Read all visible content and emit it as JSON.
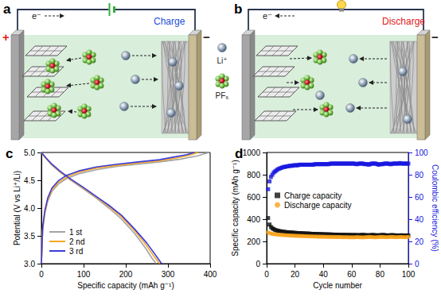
{
  "diagrams": [
    {
      "label": "a",
      "mode": "Charge",
      "electron": "e⁻",
      "positive": "+",
      "negative": "−"
    },
    {
      "label": "b",
      "mode": "Discharge",
      "electron": "e⁻",
      "negative": "−"
    }
  ],
  "species": [
    {
      "label": "Li⁺"
    },
    {
      "label": "PF₆"
    }
  ],
  "chart_data": [
    {
      "type": "line",
      "title": "c",
      "xlabel": "Specific capacity (mAh g⁻¹)",
      "ylabel": "Potential (V vs Li⁺/Li)",
      "xlim": [
        0,
        400
      ],
      "xticks": [
        0,
        100,
        200,
        300,
        400
      ],
      "ylim": [
        3.0,
        5.0
      ],
      "yticks": [
        {
          "value": 3.0,
          "label": "3.0"
        },
        {
          "value": 3.5,
          "label": "3.5"
        },
        {
          "value": 4.0,
          "label": "4.0"
        },
        {
          "value": 4.5,
          "label": "4.5"
        },
        {
          "value": 5.0,
          "label": "5.0"
        }
      ],
      "grid": false,
      "legend": "lower left",
      "series": [
        {
          "name": "1 st",
          "color": "#a3a3a3",
          "x": [
            0,
            3,
            8,
            15,
            25,
            40,
            60,
            90,
            130,
            180,
            230,
            280,
            330,
            370,
            398,
            null,
            0,
            10,
            25,
            45,
            70,
            100,
            130,
            160,
            190,
            220,
            245,
            262,
            272
          ],
          "values": [
            3.0,
            3.6,
            3.9,
            4.12,
            4.3,
            4.43,
            4.53,
            4.62,
            4.69,
            4.75,
            4.79,
            4.83,
            4.88,
            4.94,
            5.0,
            null,
            5.0,
            4.9,
            4.77,
            4.64,
            4.5,
            4.34,
            4.18,
            4.0,
            3.8,
            3.55,
            3.3,
            3.1,
            3.0
          ]
        },
        {
          "name": "2 nd",
          "color": "#f5a623",
          "x": [
            0,
            3,
            8,
            15,
            25,
            40,
            60,
            90,
            130,
            180,
            230,
            280,
            320,
            350,
            372,
            null,
            0,
            10,
            25,
            45,
            70,
            100,
            130,
            160,
            190,
            220,
            248,
            268,
            280
          ],
          "values": [
            3.0,
            3.62,
            3.92,
            4.15,
            4.33,
            4.46,
            4.56,
            4.65,
            4.72,
            4.77,
            4.81,
            4.85,
            4.9,
            4.95,
            5.0,
            null,
            5.0,
            4.9,
            4.78,
            4.65,
            4.51,
            4.36,
            4.2,
            4.03,
            3.84,
            3.6,
            3.34,
            3.12,
            3.0
          ]
        },
        {
          "name": "3 rd",
          "color": "#3b3bd9",
          "x": [
            0,
            3,
            8,
            15,
            25,
            40,
            60,
            90,
            130,
            180,
            230,
            280,
            315,
            345,
            362,
            null,
            0,
            10,
            25,
            45,
            70,
            100,
            130,
            160,
            190,
            220,
            250,
            272,
            285
          ],
          "values": [
            3.0,
            3.65,
            3.95,
            4.18,
            4.36,
            4.49,
            4.59,
            4.67,
            4.74,
            4.79,
            4.83,
            4.87,
            4.92,
            4.96,
            5.0,
            null,
            5.0,
            4.91,
            4.79,
            4.66,
            4.52,
            4.37,
            4.21,
            4.05,
            3.87,
            3.63,
            3.37,
            3.14,
            3.0
          ]
        }
      ]
    },
    {
      "type": "scatter",
      "title": "d",
      "xlabel": "Cycle number",
      "ylabel": "Specific capacity (mAh g⁻¹)",
      "y2label": "Coulombic efficiency (%)",
      "xlim": [
        0,
        100
      ],
      "xticks": [
        0,
        20,
        40,
        60,
        80,
        100
      ],
      "ylim": [
        0,
        1000
      ],
      "yticks": [
        0,
        200,
        400,
        600,
        800,
        1000
      ],
      "y2lim": [
        0,
        100
      ],
      "y2ticks": [
        0,
        20,
        40,
        60,
        80,
        100
      ],
      "grid": false,
      "legend": "center left",
      "x": [
        1,
        2,
        3,
        4,
        5,
        6,
        7,
        8,
        9,
        10,
        11,
        12,
        13,
        14,
        15,
        16,
        17,
        18,
        19,
        20,
        21,
        22,
        23,
        24,
        25,
        26,
        27,
        28,
        29,
        30,
        31,
        32,
        33,
        34,
        35,
        36,
        37,
        38,
        39,
        40,
        41,
        42,
        43,
        44,
        45,
        46,
        47,
        48,
        49,
        50,
        51,
        52,
        53,
        54,
        55,
        56,
        57,
        58,
        59,
        60,
        61,
        62,
        63,
        64,
        65,
        66,
        67,
        68,
        69,
        70,
        71,
        72,
        73,
        74,
        75,
        76,
        77,
        78,
        79,
        80,
        81,
        82,
        83,
        84,
        85,
        86,
        87,
        88,
        89,
        90,
        91,
        92,
        93,
        94,
        95,
        96,
        97,
        98,
        99,
        100
      ],
      "series": [
        {
          "name": "Charge capacity",
          "color": "#111111",
          "marker": "square",
          "values": [
            410,
            352,
            330,
            318,
            310,
            303,
            299,
            296,
            293,
            290,
            288,
            286,
            285,
            283,
            282,
            281,
            280,
            279,
            278,
            277,
            276,
            275,
            275,
            274,
            273,
            272,
            272,
            271,
            270,
            270,
            269,
            268,
            268,
            267,
            267,
            266,
            266,
            265,
            265,
            264,
            264,
            263,
            263,
            263,
            262,
            262,
            261,
            261,
            261,
            260,
            260,
            260,
            259,
            259,
            259,
            258,
            258,
            258,
            258,
            257,
            257,
            257,
            257,
            256,
            256,
            256,
            258,
            259,
            257,
            256,
            255,
            255,
            256,
            257,
            258,
            256,
            255,
            255,
            254,
            256,
            257,
            258,
            257,
            255,
            254,
            254,
            255,
            256,
            256,
            255,
            254,
            254,
            253,
            254,
            255,
            254,
            253,
            253,
            254,
            254
          ]
        },
        {
          "name": "Discharge capacity",
          "color": "#f7a21b",
          "marker": "circle",
          "values": [
            282,
            275,
            271,
            268,
            266,
            264,
            262,
            261,
            260,
            259,
            258,
            257,
            256,
            255,
            255,
            254,
            253,
            252,
            252,
            251,
            250,
            250,
            249,
            249,
            248,
            248,
            247,
            247,
            246,
            246,
            245,
            245,
            244,
            244,
            244,
            243,
            243,
            243,
            242,
            242,
            242,
            241,
            241,
            241,
            240,
            240,
            240,
            240,
            239,
            239,
            239,
            239,
            238,
            238,
            238,
            238,
            238,
            237,
            237,
            237,
            237,
            237,
            238,
            239,
            238,
            237,
            236,
            236,
            237,
            238,
            239,
            240,
            240,
            239,
            238,
            237,
            237,
            238,
            239,
            240,
            241,
            240,
            239,
            238,
            238,
            239,
            240,
            241,
            240,
            239,
            238,
            238,
            239,
            240,
            240,
            239,
            238,
            238,
            239,
            240
          ]
        },
        {
          "color": "#1515e0",
          "marker": "square",
          "axis": "y2",
          "values": [
            67,
            74,
            78,
            80,
            82,
            83,
            84,
            85,
            85.5,
            86,
            86.5,
            87,
            87,
            87.5,
            87.5,
            88,
            88,
            88,
            88.5,
            88.5,
            88.5,
            88.5,
            89,
            89,
            89,
            89,
            89,
            89,
            89,
            89,
            89,
            89,
            89,
            89.5,
            89.5,
            89.5,
            89.5,
            89.5,
            89.5,
            89.5,
            89.5,
            89.5,
            89.5,
            89.5,
            90,
            90,
            90,
            90,
            90,
            90,
            90,
            90,
            90,
            90,
            90,
            90,
            90,
            90,
            90,
            90,
            90,
            90,
            89.5,
            89.5,
            90,
            90,
            90,
            90,
            89.5,
            89.5,
            89.5,
            89,
            89.5,
            90,
            90,
            90,
            90,
            89.5,
            89,
            89.5,
            89.5,
            89.5,
            90,
            90,
            90,
            90,
            89.5,
            89.5,
            90,
            90,
            90,
            90,
            90,
            90.5,
            90,
            90,
            90,
            90,
            90,
            90
          ]
        }
      ]
    }
  ]
}
